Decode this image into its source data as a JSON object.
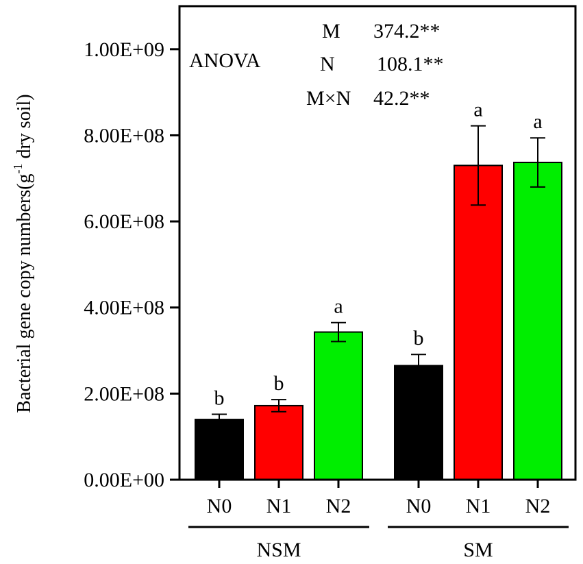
{
  "chart_data": {
    "type": "bar",
    "ylabel_main": "Bacterial gene copy numbers(g",
    "ylabel_sup": "-1",
    "ylabel_tail": " dry soil)",
    "ylim": [
      0,
      1100000000
    ],
    "yticks": [
      0,
      200000000,
      400000000,
      600000000,
      800000000,
      1000000000
    ],
    "ytick_labels": [
      "0.00E+00",
      "2.00E+08",
      "4.00E+08",
      "6.00E+08",
      "8.00E+08",
      "1.00E+09"
    ],
    "grid": false,
    "groups": [
      {
        "name": "NSM",
        "bars": [
          {
            "category": "N0",
            "value": 140000000,
            "error": 12000000,
            "sig": "b",
            "color": "#000000"
          },
          {
            "category": "N1",
            "value": 172000000,
            "error": 14000000,
            "sig": "b",
            "color": "#ff0000"
          },
          {
            "category": "N2",
            "value": 343000000,
            "error": 22000000,
            "sig": "a",
            "color": "#00ee00"
          }
        ]
      },
      {
        "name": "SM",
        "bars": [
          {
            "category": "N0",
            "value": 265000000,
            "error": 26000000,
            "sig": "b",
            "color": "#000000"
          },
          {
            "category": "N1",
            "value": 730000000,
            "error": 92000000,
            "sig": "a",
            "color": "#ff0000"
          },
          {
            "category": "N2",
            "value": 737000000,
            "error": 57000000,
            "sig": "a",
            "color": "#00ee00"
          }
        ]
      }
    ],
    "anova": {
      "title": "ANOVA",
      "rows": [
        {
          "factor": "M",
          "value": "374.2**"
        },
        {
          "factor": "N",
          "value": "108.1**"
        },
        {
          "factor": "M×N",
          "value": "42.2**"
        }
      ]
    }
  }
}
